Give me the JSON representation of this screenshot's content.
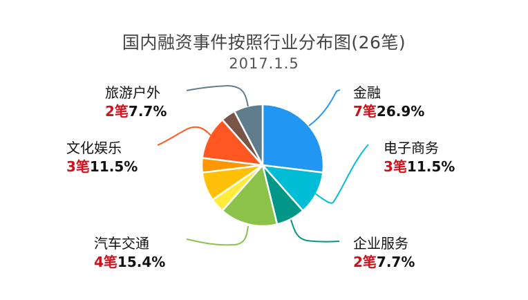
{
  "header": {
    "title": "国内融资事件按照行业分布图(26笔)",
    "date": "2017.1.5"
  },
  "unit": "笔",
  "labels": [
    {
      "name": "金融",
      "count": "7",
      "pct": "26.9%"
    },
    {
      "name": "电子商务",
      "count": "3",
      "pct": "11.5%"
    },
    {
      "name": "企业服务",
      "count": "2",
      "pct": "7.7%"
    },
    {
      "name": "汽车交通",
      "count": "4",
      "pct": "15.4%"
    },
    {
      "name": "文化娱乐",
      "count": "3",
      "pct": "11.5%"
    },
    {
      "name": "旅游户外",
      "count": "2",
      "pct": "7.7%"
    }
  ],
  "chart_data": {
    "type": "pie",
    "title": "国内融资事件按照行业分布图(26笔)",
    "subtitle": "2017.1.5",
    "total": 26,
    "start_angle_deg": 0,
    "direction": "clockwise",
    "slices": [
      {
        "label": "金融",
        "value": 7,
        "percent": 26.9,
        "color": "#2196f3",
        "labeled": true
      },
      {
        "label": "电子商务",
        "value": 3,
        "percent": 11.5,
        "color": "#00bcd4",
        "labeled": true
      },
      {
        "label": "企业服务",
        "value": 2,
        "percent": 7.7,
        "color": "#009688",
        "labeled": true
      },
      {
        "label": "汽车交通",
        "value": 4,
        "percent": 15.4,
        "color": "#8bc34a",
        "labeled": true
      },
      {
        "label": "",
        "value": 1,
        "percent": 3.8,
        "color": "#ffeb3b",
        "labeled": false
      },
      {
        "label": "",
        "value": 2,
        "percent": 7.7,
        "color": "#ffc107",
        "labeled": false
      },
      {
        "label": "",
        "value": 1,
        "percent": 3.8,
        "color": "#ff9800",
        "labeled": false
      },
      {
        "label": "文化娱乐",
        "value": 3,
        "percent": 11.5,
        "color": "#ff5722",
        "labeled": true
      },
      {
        "label": "",
        "value": 1,
        "percent": 3.8,
        "color": "#795548",
        "labeled": false
      },
      {
        "label": "旅游户外",
        "value": 2,
        "percent": 7.7,
        "color": "#607d8b",
        "labeled": true
      }
    ],
    "legend": "callout labels with leader lines",
    "label_count_color": "#d0111b"
  }
}
